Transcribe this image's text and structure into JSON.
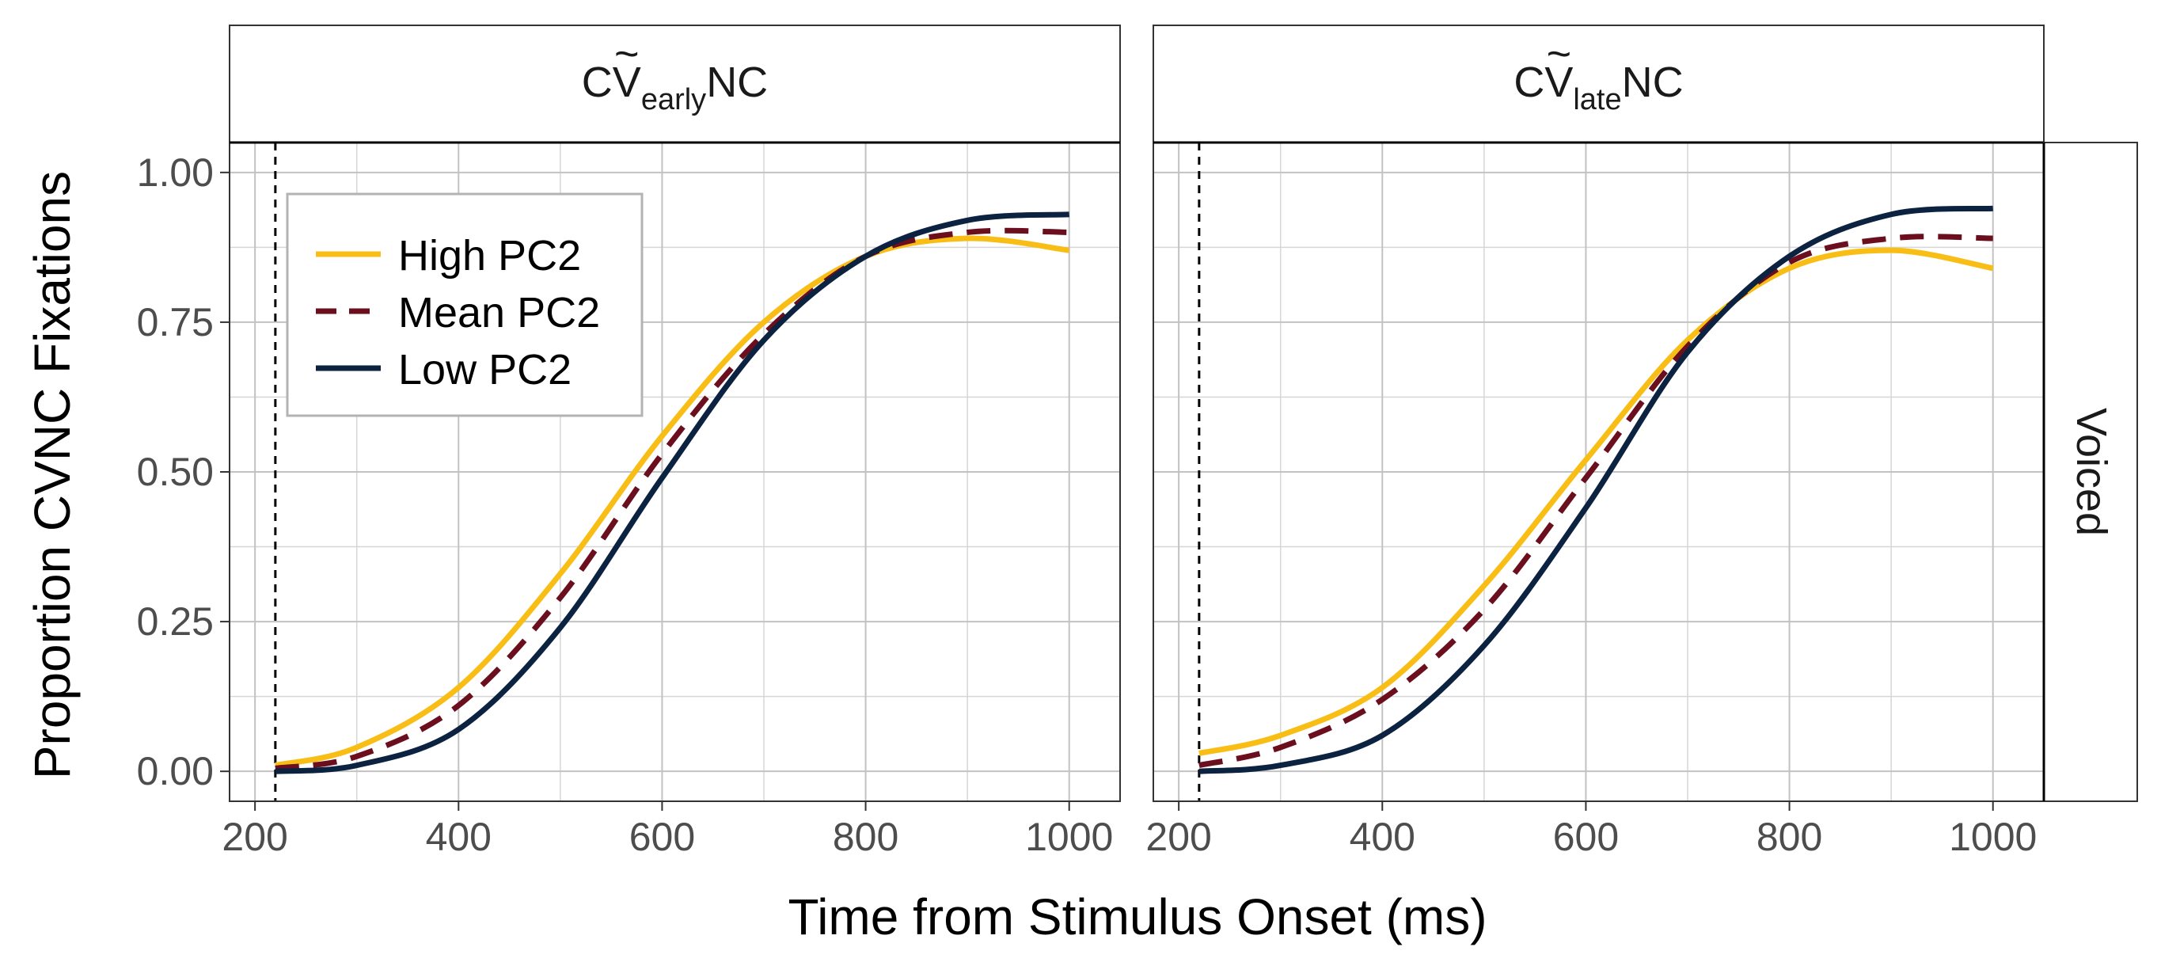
{
  "chart_data": {
    "type": "line",
    "xlabel": "Time from Stimulus Onset (ms)",
    "ylabel": "Proportion CVNC Fixations",
    "xlim": [
      175,
      1050
    ],
    "ylim": [
      -0.05,
      1.05
    ],
    "x_ticks": [
      200,
      400,
      600,
      800,
      1000
    ],
    "y_ticks": [
      0,
      0.25,
      0.5,
      0.75,
      1
    ],
    "x_tick_labels": [
      "200",
      "400",
      "600",
      "800",
      "1000"
    ],
    "y_tick_labels": [
      "0.00",
      "0.25",
      "0.50",
      "0.75",
      "1.00"
    ],
    "grid": true,
    "vline_x": 220,
    "row_strip": "Voiced",
    "legend": {
      "placement": "top-left",
      "items": [
        {
          "name": "High PC2",
          "color": "#F9BE16",
          "style": "solid"
        },
        {
          "name": "Mean PC2",
          "color": "#6B0F1F",
          "style": "dashed"
        },
        {
          "name": "Low PC2",
          "color": "#0B2240",
          "style": "solid"
        }
      ]
    },
    "panels": [
      {
        "strip": {
          "prefix": "CV",
          "tilde": "~",
          "sub": "early",
          "suffix": "NC"
        },
        "x": [
          220,
          300,
          400,
          500,
          600,
          700,
          800,
          900,
          1000
        ],
        "series": [
          {
            "name": "High PC2",
            "values": [
              0.01,
              0.04,
              0.14,
              0.33,
              0.56,
              0.75,
              0.86,
              0.89,
              0.87
            ]
          },
          {
            "name": "Mean PC2",
            "values": [
              0.005,
              0.025,
              0.11,
              0.29,
              0.53,
              0.73,
              0.86,
              0.9,
              0.9
            ]
          },
          {
            "name": "Low PC2",
            "values": [
              0.0,
              0.01,
              0.07,
              0.24,
              0.49,
              0.72,
              0.86,
              0.92,
              0.93
            ]
          }
        ]
      },
      {
        "strip": {
          "prefix": "CV",
          "tilde": "~",
          "sub": "late",
          "suffix": "NC"
        },
        "x": [
          220,
          300,
          400,
          500,
          600,
          700,
          800,
          900,
          1000
        ],
        "series": [
          {
            "name": "High PC2",
            "values": [
              0.03,
              0.06,
              0.14,
              0.31,
              0.52,
              0.72,
              0.84,
              0.87,
              0.84
            ]
          },
          {
            "name": "Mean PC2",
            "values": [
              0.01,
              0.04,
              0.12,
              0.27,
              0.49,
              0.71,
              0.85,
              0.89,
              0.89
            ]
          },
          {
            "name": "Low PC2",
            "values": [
              0.0,
              0.01,
              0.06,
              0.21,
              0.44,
              0.7,
              0.86,
              0.93,
              0.94
            ]
          }
        ]
      }
    ]
  }
}
